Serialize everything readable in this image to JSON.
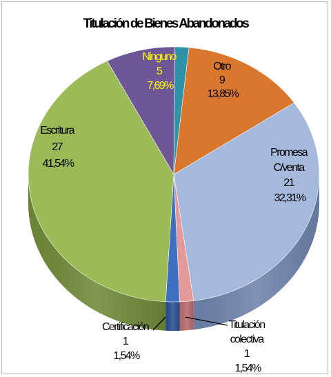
{
  "chart_data": {
    "type": "pie",
    "title": "Titulación de Bienes Abandonados",
    "slices": [
      {
        "name": "Otro",
        "value": 9,
        "percent": "13,85%",
        "color": "#d9782d",
        "side": "#8f4e1c",
        "label_color": "#000000"
      },
      {
        "name": "Promesa C/venta",
        "value": 21,
        "percent": "32,31%",
        "color": "#a5b9dd",
        "side": "#6f84ad",
        "label_color": "#000000"
      },
      {
        "name": "Titulación colectiva",
        "value": 1,
        "percent": "1,54%",
        "color": "#e59a9a",
        "side": "#b76b6b",
        "label_color": "#000000"
      },
      {
        "name": "Certificación",
        "value": 1,
        "percent": "1,54%",
        "color": "#3f6fbf",
        "side": "#2a4f8f",
        "label_color": "#000000"
      },
      {
        "name": "Escritura",
        "value": 27,
        "percent": "41,54%",
        "color": "#9bbb59",
        "side": "#6f8a39",
        "label_color": "#000000"
      },
      {
        "name": "Ninguno",
        "value": 5,
        "percent": "7,69%",
        "color": "#6f5797",
        "side": "#4b3a6b",
        "label_color": "#ffff00"
      },
      {
        "name": "",
        "value": 1,
        "percent": "",
        "color": "#2f93a8",
        "side": "#1f6573",
        "label_color": "#000000"
      }
    ],
    "labels": {
      "otro": [
        "Otro",
        "9",
        "13,85%"
      ],
      "promesa": [
        "Promesa",
        "C/venta",
        "21",
        "32,31%"
      ],
      "titulacion": [
        "Titulación",
        "colectiva",
        "1",
        "1,54%"
      ],
      "certificacion": [
        "Certificación",
        "1",
        "1,54%"
      ],
      "escritura": [
        "Escritura",
        "27",
        "41,54%"
      ],
      "ninguno": [
        "Ninguno",
        "5",
        "7,69%"
      ]
    }
  }
}
